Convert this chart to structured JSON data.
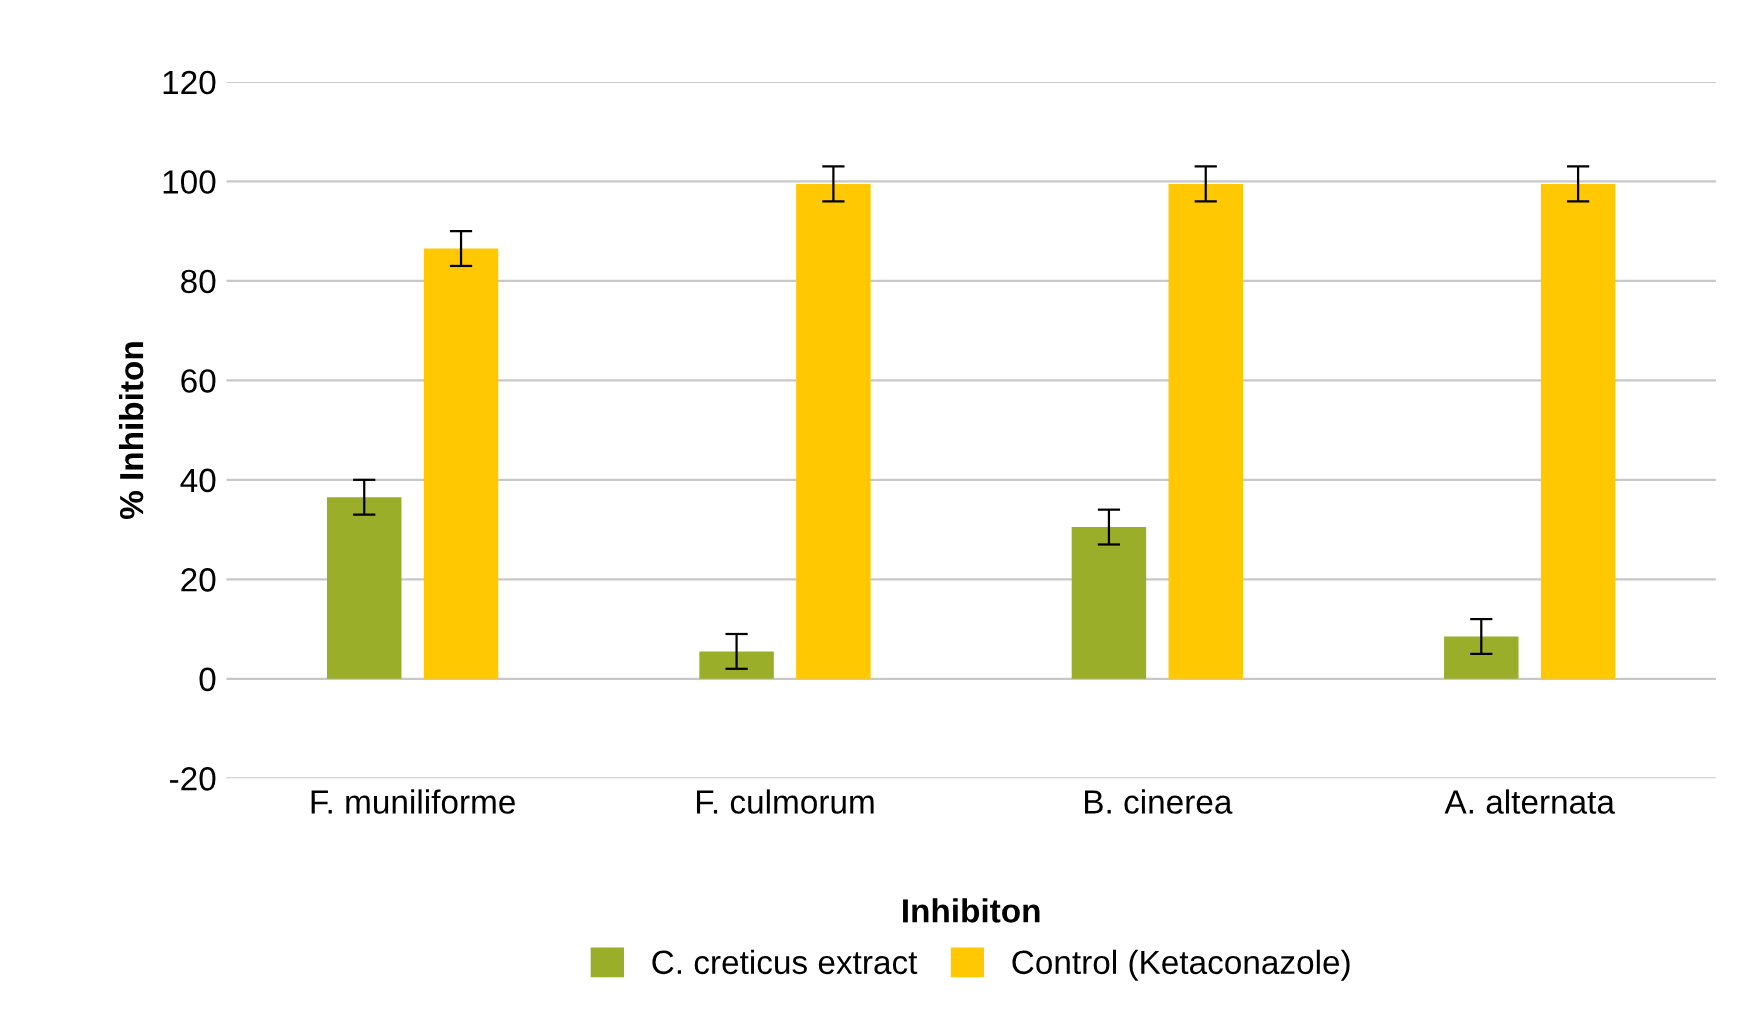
{
  "chart_data": {
    "type": "bar",
    "xlabel": "Inhibiton",
    "ylabel": "% Inhibiton",
    "categories": [
      "F. muniliforme",
      "F. culmorum",
      "B. cinerea",
      "A. alternata"
    ],
    "series": [
      {
        "name": "C. creticus extract",
        "color": "#9aae2a",
        "values": [
          36.5,
          5.5,
          30.5,
          8.5
        ],
        "errors": [
          3.5,
          3.5,
          3.5,
          3.5
        ]
      },
      {
        "name": "Control (Ketaconazole)",
        "color": "#ffc800",
        "values": [
          86.5,
          99.5,
          99.5,
          99.5
        ],
        "errors": [
          3.5,
          3.5,
          3.5,
          3.5
        ]
      }
    ],
    "ylim": [
      -20,
      120
    ],
    "yticks": [
      -20,
      0,
      20,
      40,
      60,
      80,
      100,
      120
    ],
    "grid": "y",
    "legend": "bottom"
  }
}
